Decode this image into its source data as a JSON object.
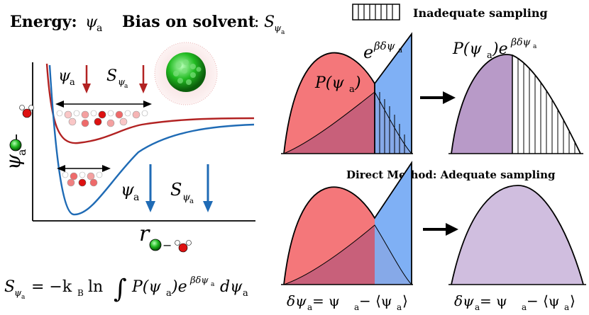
{
  "header": {
    "energy_label": "Energy:",
    "energy_symbol": "ψ",
    "energy_sub": "a",
    "bias_label": "Bias on solvent",
    "bias_colon": ":",
    "bias_symbol": "S",
    "bias_sub1": "ψ",
    "bias_sub2": "a"
  },
  "legend": {
    "label": "Inadequate sampling"
  },
  "potential_plot": {
    "y_symbol": "ψ",
    "y_sub": "a",
    "x_symbol": "r",
    "red_arrow_labels": {
      "psi": "ψ",
      "psi_sub": "a",
      "s": "S",
      "s_sub1": "ψ",
      "s_sub2": "a"
    },
    "blue_arrow_labels": {
      "psi": "ψ",
      "psi_sub": "a",
      "s": "S",
      "s_sub1": "ψ",
      "s_sub2": "a"
    }
  },
  "formula": {
    "lhs": "S",
    "lhs_sub1": "ψ",
    "lhs_sub2": "a",
    "eq": "= −k",
    "kb_sub": "B",
    "ln": "ln",
    "integral": "∫",
    "p": "P(ψ",
    "p_sub": "a",
    "p_close": ")e",
    "exp": "βδψ",
    "exp_sub": "a",
    "d": "dψ",
    "d_sub": "a"
  },
  "top_left_panel": {
    "exp_label": "e",
    "exp_sup": "βδψ",
    "exp_sup_sub": "a",
    "p_label": "P(ψ",
    "p_sub": "a",
    "p_close": ")"
  },
  "top_right_panel": {
    "label": "P(ψ",
    "label_sub": "a",
    "label_mid": ")e",
    "label_sup": "βδψ",
    "label_sup_sub": "a"
  },
  "section_label": "Direct Method:  Adequate sampling",
  "bottom_axis": {
    "left": "δψ",
    "left_sub": "a",
    "left_rest": " = ψ",
    "left_rest_sub": "a",
    "left_tail": " − ⟨ψ",
    "left_tail_sub": "a",
    "left_end": "⟩",
    "right": "δψ",
    "right_sub": "a",
    "right_rest": " = ψ",
    "right_rest_sub": "a",
    "right_tail": " − ⟨ψ",
    "right_tail_sub": "a",
    "right_end": "⟩"
  },
  "colors": {
    "red_curve": "#b22222",
    "blue_curve": "#1f6bb5",
    "red_fill": "#f4777a",
    "blue_fill": "#7fb0f5",
    "overlap_fill": "#c8607a",
    "purple_fill": "#b89ac8",
    "light_purple_fill": "#d0bedf",
    "sphere_green": "#22bb22"
  }
}
